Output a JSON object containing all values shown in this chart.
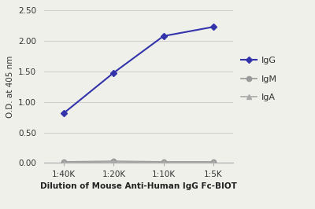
{
  "x_labels": [
    "1:40K",
    "1:20K",
    "1:10K",
    "1:5K"
  ],
  "x_positions": [
    0,
    1,
    2,
    3
  ],
  "IgG_values": [
    0.82,
    1.48,
    2.08,
    2.23
  ],
  "IgM_values": [
    0.02,
    0.03,
    0.02,
    0.02
  ],
  "IgA_values": [
    0.01,
    0.02,
    0.01,
    0.01
  ],
  "IgG_color": "#3333aa",
  "IgM_color": "#999999",
  "IgA_color": "#aaaaaa",
  "xlabel": "Dilution of Mouse Anti-Human IgG Fc-BIOT",
  "ylabel": "O.D. at 405 nm",
  "ylim": [
    0.0,
    2.5
  ],
  "yticks": [
    0.0,
    0.5,
    1.0,
    1.5,
    2.0,
    2.5
  ],
  "background_color": "#f0f0eb",
  "plot_bg_color": "#f0f0eb",
  "legend_labels": [
    "IgG",
    "IgM",
    "IgA"
  ],
  "grid_color": "#d0d0d0"
}
